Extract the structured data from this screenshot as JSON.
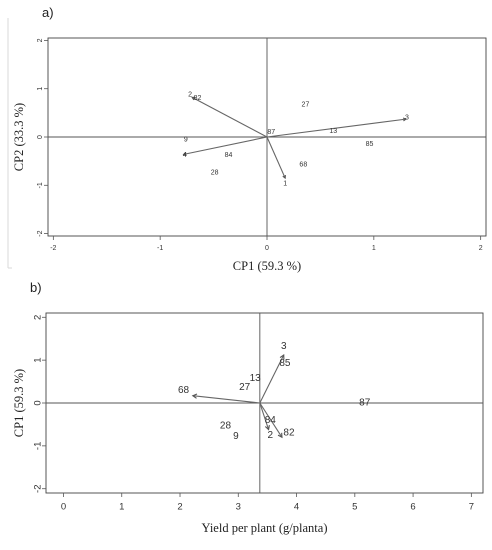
{
  "panel_a_label": "a)",
  "panel_b_label": "b)",
  "chart_data": [
    {
      "type": "scatter",
      "subtype": "biplot",
      "xlabel": "CP1 (59.3 %)",
      "ylabel": "CP2 (33.3 %)",
      "xlim": [
        -2.05,
        2.05
      ],
      "ylim": [
        -2.05,
        2.05
      ],
      "xticks": [
        "-2",
        "-1",
        "0",
        "1",
        "2"
      ],
      "yticks": [
        "-2",
        "-1",
        "0",
        "1",
        "2"
      ],
      "reference_lines": {
        "x": 0,
        "y": 0
      },
      "points": [
        {
          "label": "2",
          "x": -0.72,
          "y": 0.88
        },
        {
          "label": "82",
          "x": -0.65,
          "y": 0.8
        },
        {
          "label": "27",
          "x": 0.36,
          "y": 0.67
        },
        {
          "label": "3",
          "x": 1.31,
          "y": 0.4
        },
        {
          "label": "87",
          "x": 0.04,
          "y": 0.1
        },
        {
          "label": "13",
          "x": 0.62,
          "y": 0.12
        },
        {
          "label": "85",
          "x": 0.96,
          "y": -0.15
        },
        {
          "label": "9",
          "x": -0.76,
          "y": -0.06
        },
        {
          "label": "4",
          "x": -0.77,
          "y": -0.38
        },
        {
          "label": "84",
          "x": -0.36,
          "y": -0.38
        },
        {
          "label": "68",
          "x": 0.34,
          "y": -0.57
        },
        {
          "label": "28",
          "x": -0.49,
          "y": -0.74
        },
        {
          "label": "1",
          "x": 0.17,
          "y": -0.97
        }
      ],
      "vectors": [
        {
          "from": [
            0,
            0
          ],
          "to": [
            -0.7,
            0.82
          ]
        },
        {
          "from": [
            0,
            0
          ],
          "to": [
            1.3,
            0.37
          ]
        },
        {
          "from": [
            0,
            0
          ],
          "to": [
            -0.78,
            -0.36
          ]
        },
        {
          "from": [
            0,
            0
          ],
          "to": [
            0.17,
            -0.85
          ]
        }
      ]
    },
    {
      "type": "scatter",
      "subtype": "biplot",
      "xlabel": "Yield per plant (g/planta)",
      "ylabel": "CP1 (59.3 %)",
      "xlim": [
        -0.3,
        7.2
      ],
      "ylim": [
        -2.1,
        2.1
      ],
      "xticks": [
        "0",
        "1",
        "2",
        "3",
        "4",
        "5",
        "6",
        "7"
      ],
      "yticks": [
        "-2",
        "-1",
        "0",
        "1",
        "2"
      ],
      "reference_lines": {
        "x": 3.37,
        "y": 0
      },
      "points": [
        {
          "label": "3",
          "x": 3.78,
          "y": 1.32
        },
        {
          "label": "85",
          "x": 3.8,
          "y": 0.92
        },
        {
          "label": "13",
          "x": 3.29,
          "y": 0.58
        },
        {
          "label": "27",
          "x": 3.11,
          "y": 0.36
        },
        {
          "label": "68",
          "x": 2.06,
          "y": 0.3
        },
        {
          "label": "87",
          "x": 5.17,
          "y": 0.0
        },
        {
          "label": "84",
          "x": 3.55,
          "y": -0.41
        },
        {
          "label": "28",
          "x": 2.78,
          "y": -0.53
        },
        {
          "label": "82",
          "x": 3.87,
          "y": -0.7
        },
        {
          "label": "2",
          "x": 3.55,
          "y": -0.75
        },
        {
          "label": "9",
          "x": 2.96,
          "y": -0.78
        }
      ],
      "vectors": [
        {
          "from": [
            3.37,
            0
          ],
          "to": [
            3.78,
            1.12
          ]
        },
        {
          "from": [
            3.37,
            0
          ],
          "to": [
            2.22,
            0.17
          ]
        },
        {
          "from": [
            3.37,
            0
          ],
          "to": [
            3.52,
            -0.62
          ]
        },
        {
          "from": [
            3.37,
            0
          ],
          "to": [
            3.75,
            -0.8
          ]
        }
      ]
    }
  ]
}
